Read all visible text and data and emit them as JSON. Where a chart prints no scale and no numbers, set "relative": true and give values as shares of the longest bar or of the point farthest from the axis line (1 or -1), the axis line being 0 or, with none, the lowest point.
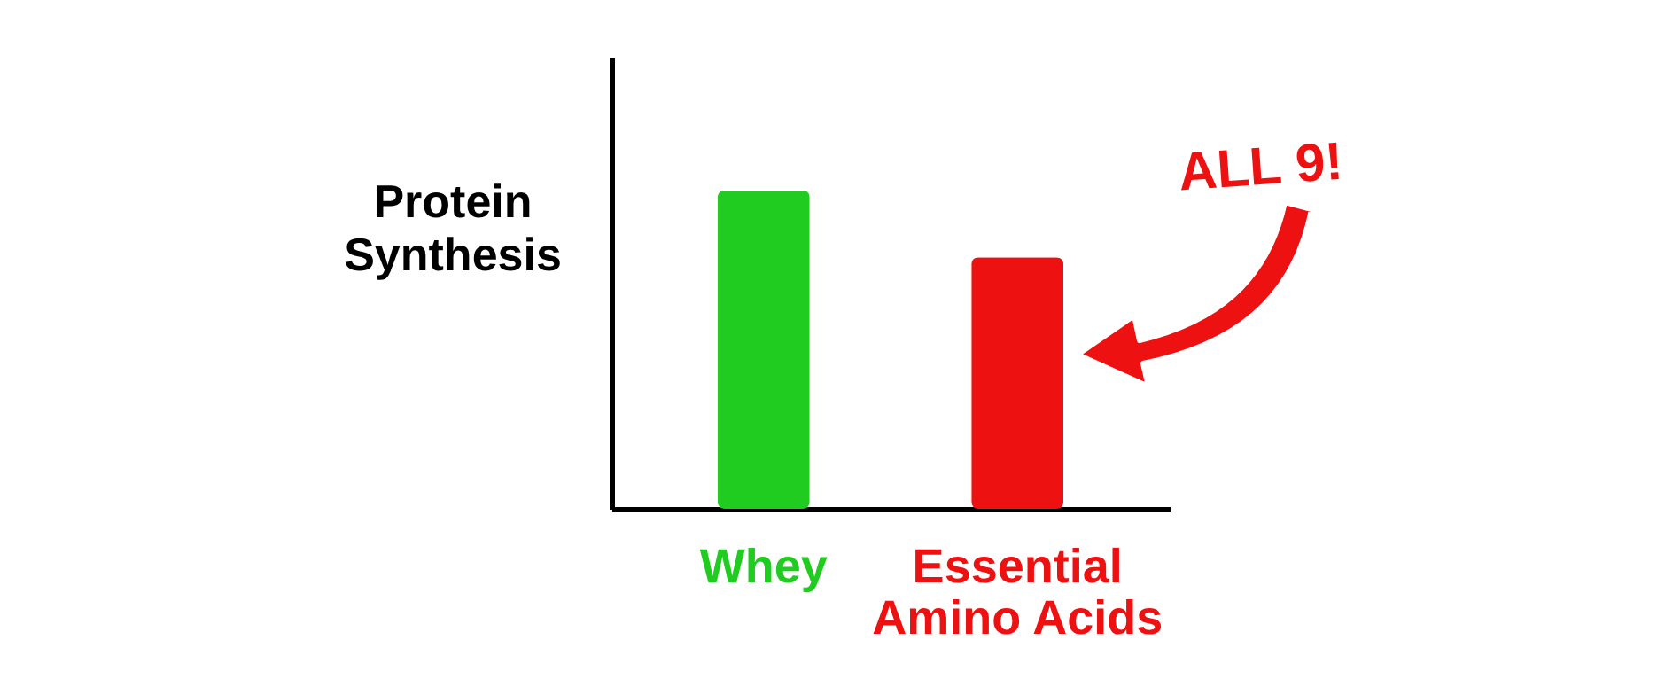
{
  "chart_data": {
    "type": "bar",
    "relative": true,
    "ylabel": "Protein Synthesis",
    "categories": [
      "Whey",
      "Essential Amino Acids"
    ],
    "values": [
      1,
      0.79
    ],
    "colors": [
      "#1fcc1f",
      "#ee1111"
    ],
    "annotations": [
      "ALL 9!"
    ],
    "grid": false,
    "legend": false
  }
}
